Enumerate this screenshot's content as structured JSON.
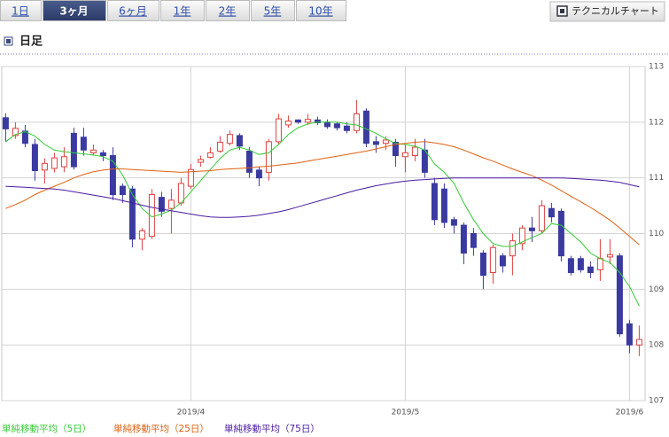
{
  "tabs": [
    "1日",
    "3ヶ月",
    "6ヶ月",
    "1年",
    "2年",
    "5年",
    "10年"
  ],
  "selected_tab": 1,
  "technical_button": "テクニカルチャート",
  "section_title": "日足",
  "chart_data": {
    "type": "candlestick",
    "categories": [
      null,
      null,
      null,
      null,
      null,
      null,
      null,
      null,
      null,
      null,
      null,
      null,
      null,
      null,
      null,
      null,
      null,
      null,
      null,
      "2019/4",
      null,
      null,
      null,
      null,
      null,
      null,
      null,
      null,
      null,
      null,
      null,
      null,
      null,
      null,
      null,
      null,
      null,
      null,
      null,
      null,
      null,
      "2019/5",
      null,
      null,
      null,
      null,
      null,
      null,
      null,
      null,
      null,
      null,
      null,
      null,
      null,
      null,
      null,
      null,
      null,
      null,
      null,
      null,
      null,
      null,
      "2019/6",
      null
    ],
    "open": [
      112.08,
      111.76,
      111.84,
      111.6,
      111.14,
      111.17,
      111.2,
      111.8,
      111.73,
      111.45,
      111.45,
      111.4,
      110.85,
      110.8,
      109.9,
      109.95,
      110.65,
      110.45,
      110.55,
      110.85,
      111.28,
      111.37,
      111.48,
      111.62,
      111.76,
      111.48,
      111.14,
      111.1,
      111.65,
      111.95,
      112.04,
      112.0,
      112.04,
      112.0,
      111.97,
      111.93,
      111.85,
      112.2,
      111.65,
      111.62,
      111.64,
      111.38,
      111.4,
      111.5,
      110.9,
      110.8,
      110.25,
      110.15,
      110.0,
      109.65,
      109.3,
      109.6,
      109.6,
      109.82,
      110.1,
      110.05,
      110.45,
      110.4,
      109.55,
      109.55,
      109.4,
      109.35,
      109.58,
      109.6,
      108.38,
      108.0
    ],
    "high": [
      112.16,
      112.0,
      111.95,
      111.7,
      111.35,
      111.45,
      111.55,
      111.9,
      111.9,
      111.6,
      111.5,
      111.55,
      110.9,
      110.85,
      110.1,
      110.8,
      110.75,
      110.8,
      111.0,
      111.25,
      111.4,
      111.55,
      111.75,
      111.85,
      111.8,
      111.55,
      111.2,
      111.7,
      112.15,
      112.12,
      112.05,
      112.15,
      112.1,
      112.05,
      112.0,
      112.0,
      112.4,
      112.25,
      111.75,
      111.75,
      111.7,
      111.6,
      111.7,
      111.7,
      111.0,
      110.9,
      110.3,
      110.2,
      110.1,
      109.7,
      109.8,
      109.65,
      110.0,
      110.15,
      110.3,
      110.6,
      110.55,
      110.45,
      109.6,
      109.6,
      109.5,
      109.9,
      109.9,
      109.65,
      108.45,
      108.35
    ],
    "low": [
      111.65,
      111.7,
      111.55,
      110.95,
      110.9,
      111.1,
      111.1,
      111.15,
      111.4,
      111.4,
      111.3,
      110.6,
      110.55,
      109.75,
      109.7,
      109.9,
      110.3,
      110.0,
      110.5,
      110.8,
      111.2,
      111.35,
      111.45,
      111.58,
      111.5,
      111.0,
      110.85,
      110.95,
      111.6,
      111.9,
      111.97,
      111.95,
      111.95,
      111.88,
      111.85,
      111.8,
      111.8,
      111.55,
      111.45,
      111.5,
      111.2,
      111.1,
      111.3,
      111.0,
      110.15,
      110.1,
      110.0,
      109.45,
      109.6,
      109.0,
      109.1,
      109.3,
      109.25,
      109.7,
      109.85,
      110.0,
      110.2,
      109.5,
      109.25,
      109.3,
      109.2,
      109.15,
      109.45,
      108.15,
      107.85,
      107.8
    ],
    "close": [
      111.88,
      111.89,
      111.62,
      111.13,
      111.26,
      111.36,
      111.38,
      111.2,
      111.5,
      111.5,
      111.4,
      110.7,
      110.7,
      109.9,
      110.05,
      110.7,
      110.4,
      110.6,
      110.9,
      111.15,
      111.33,
      111.45,
      111.64,
      111.78,
      111.57,
      111.1,
      111.0,
      111.65,
      112.06,
      112.02,
      112.0,
      112.05,
      111.99,
      111.92,
      111.9,
      111.85,
      112.15,
      111.62,
      111.6,
      111.68,
      111.4,
      111.45,
      111.55,
      111.1,
      110.25,
      110.2,
      110.15,
      109.65,
      109.75,
      109.25,
      109.75,
      109.42,
      109.87,
      110.1,
      110.05,
      110.5,
      110.3,
      109.6,
      109.3,
      109.35,
      109.3,
      109.55,
      109.62,
      108.2,
      108.0,
      108.1
    ],
    "up_color": "#e04040",
    "down_color": "#3a3aa0",
    "series": [
      {
        "name": "単純移動平均（5日）",
        "color": "#33cc33",
        "values": [
          111.65,
          111.78,
          111.83,
          111.75,
          111.6,
          111.5,
          111.47,
          111.45,
          111.43,
          111.41,
          111.38,
          111.3,
          111.05,
          110.7,
          110.45,
          110.3,
          110.35,
          110.42,
          110.55,
          110.75,
          110.95,
          111.15,
          111.35,
          111.5,
          111.55,
          111.5,
          111.42,
          111.45,
          111.6,
          111.78,
          111.9,
          111.97,
          112.0,
          112.0,
          112.0,
          111.97,
          111.95,
          111.88,
          111.8,
          111.7,
          111.62,
          111.6,
          111.57,
          111.5,
          111.25,
          111.1,
          110.9,
          110.55,
          110.25,
          110.0,
          109.82,
          109.77,
          109.77,
          109.85,
          109.93,
          110.0,
          110.18,
          110.15,
          110.0,
          109.85,
          109.65,
          109.55,
          109.48,
          109.3,
          109.05,
          108.7
        ]
      },
      {
        "name": "単純移動平均（25日）",
        "color": "#e06010",
        "values": [
          110.45,
          110.52,
          110.6,
          110.7,
          110.78,
          110.85,
          110.92,
          111.0,
          111.06,
          111.11,
          111.14,
          111.16,
          111.16,
          111.15,
          111.14,
          111.13,
          111.12,
          111.11,
          111.1,
          111.11,
          111.12,
          111.13,
          111.15,
          111.16,
          111.17,
          111.18,
          111.2,
          111.21,
          111.23,
          111.25,
          111.27,
          111.3,
          111.33,
          111.36,
          111.39,
          111.42,
          111.45,
          111.48,
          111.52,
          111.56,
          111.6,
          111.62,
          111.64,
          111.65,
          111.63,
          111.6,
          111.56,
          111.5,
          111.43,
          111.36,
          111.3,
          111.23,
          111.16,
          111.1,
          111.04,
          110.96,
          110.87,
          110.77,
          110.67,
          110.57,
          110.47,
          110.36,
          110.24,
          110.1,
          109.95,
          109.8
        ]
      },
      {
        "name": "単純移動平均（75日）",
        "color": "#4a1aa0",
        "values": [
          110.85,
          110.84,
          110.83,
          110.82,
          110.81,
          110.8,
          110.78,
          110.75,
          110.72,
          110.69,
          110.66,
          110.63,
          110.59,
          110.55,
          110.51,
          110.47,
          110.44,
          110.41,
          110.38,
          110.35,
          110.32,
          110.3,
          110.29,
          110.29,
          110.3,
          110.31,
          110.33,
          110.36,
          110.39,
          110.43,
          110.48,
          110.53,
          110.58,
          110.63,
          110.68,
          110.73,
          110.78,
          110.82,
          110.86,
          110.89,
          110.92,
          110.94,
          110.96,
          110.97,
          110.98,
          110.99,
          111.0,
          111.0,
          111.0,
          111.0,
          111.0,
          111.0,
          111.0,
          111.0,
          111.0,
          111.0,
          111.0,
          111.0,
          110.99,
          110.98,
          110.97,
          110.96,
          110.94,
          110.92,
          110.88,
          110.84
        ]
      }
    ],
    "ylim": [
      107,
      113
    ],
    "yticks": [
      107,
      108,
      109,
      110,
      111,
      112,
      113
    ],
    "grid": true
  }
}
